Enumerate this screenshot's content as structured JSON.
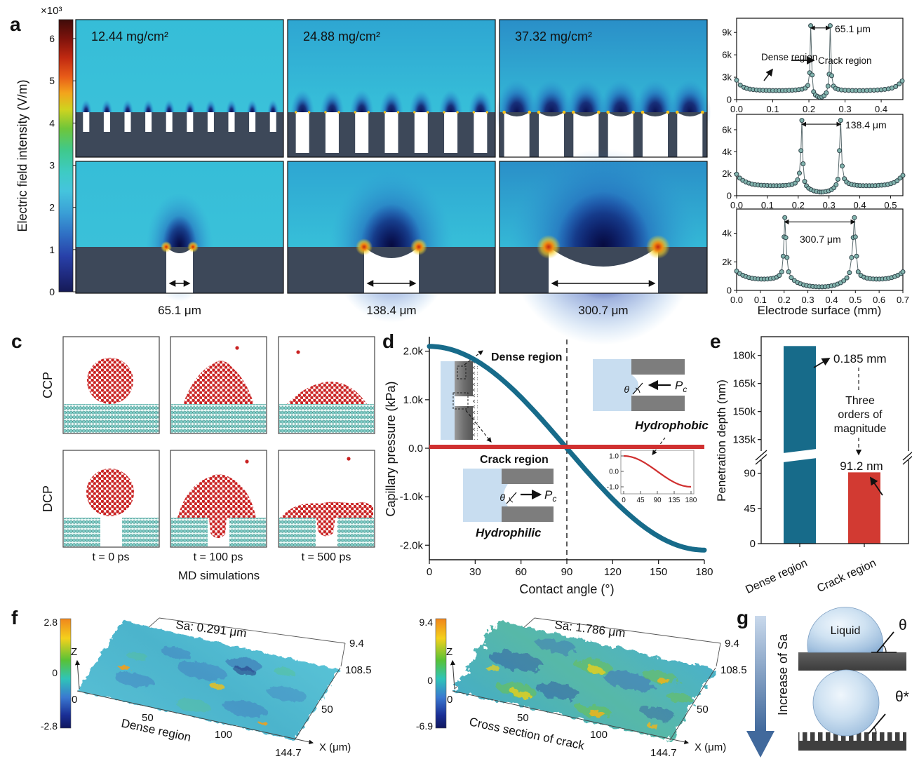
{
  "panel_a": {
    "label": "a",
    "scale_multiplier": "×10³",
    "colorbar_ticks": [
      "6",
      "5",
      "4",
      "3",
      "2",
      "1",
      "0"
    ],
    "ylabel": "Electric field intensity (V/m)",
    "columns": [
      {
        "loading": "12.44 mg/cm²",
        "crack_width": "65.1 μm"
      },
      {
        "loading": "24.88 mg/cm²",
        "crack_width": "138.4 μm"
      },
      {
        "loading": "37.32 mg/cm²",
        "crack_width": "300.7 μm"
      }
    ]
  },
  "panel_b": {
    "label": "b",
    "xlabel": "Electrode surface (mm)",
    "annotations": {
      "dense": "Dense region",
      "crack": "Crack region"
    }
  },
  "panel_c": {
    "label": "c",
    "rows": [
      "CCP",
      "DCP"
    ],
    "times": [
      "t = 0 ps",
      "t = 100 ps",
      "t = 500 ps"
    ],
    "caption": "MD simulations"
  },
  "panel_d": {
    "label": "d",
    "ylabel": "Capillary pressure (kPa)",
    "xlabel": "Contact angle (°)",
    "dense_label": "Dense region",
    "crack_label": "Crack region",
    "hydrophobic": "Hydrophobic",
    "hydrophilic": "Hydrophilic",
    "theta": "θ",
    "pressure_symbol": {
      "base": "P",
      "sub": "c"
    }
  },
  "panel_e": {
    "label": "e",
    "ylabel": "Penetration depth (nm)",
    "magnitude_lines": [
      "Three",
      "orders of",
      "magnitude"
    ]
  },
  "panel_f": {
    "label": "f",
    "z_axis": "Z"
  },
  "panel_g": {
    "label": "g",
    "arrow_label": "Increase of Sa",
    "droplet_label": "Liquid",
    "theta": "θ",
    "theta_star": "θ*"
  },
  "chart_data": [
    {
      "type": "scatter-line",
      "panel": "b-top",
      "title_annotation": "65.1 μm",
      "xlim": [
        0,
        0.46
      ],
      "ylim": [
        0,
        10900
      ],
      "xtick_labels": [
        "0.0",
        "0.1",
        "0.2",
        "0.3",
        "0.4"
      ],
      "xtick_values": [
        0,
        0.1,
        0.2,
        0.3,
        0.4
      ],
      "yticks": [
        {
          "v": 0,
          "label": "0"
        },
        {
          "v": 3000,
          "label": "3k"
        },
        {
          "v": 6000,
          "label": "6k"
        },
        {
          "v": 9000,
          "label": "9k"
        }
      ],
      "crack_span_mm": [
        0.205,
        0.258
      ],
      "arrow_y": 9600,
      "points": [
        [
          0,
          2600
        ],
        [
          0.01,
          1950
        ],
        [
          0.02,
          1650
        ],
        [
          0.028,
          1500
        ],
        [
          0.037,
          1400
        ],
        [
          0.046,
          1340
        ],
        [
          0.055,
          1300
        ],
        [
          0.064,
          1270
        ],
        [
          0.073,
          1250
        ],
        [
          0.082,
          1235
        ],
        [
          0.091,
          1225
        ],
        [
          0.1,
          1215
        ],
        [
          0.109,
          1210
        ],
        [
          0.118,
          1210
        ],
        [
          0.127,
          1215
        ],
        [
          0.136,
          1225
        ],
        [
          0.145,
          1240
        ],
        [
          0.154,
          1260
        ],
        [
          0.163,
          1290
        ],
        [
          0.172,
          1330
        ],
        [
          0.181,
          1400
        ],
        [
          0.19,
          1550
        ],
        [
          0.197,
          1900
        ],
        [
          0.202,
          3600
        ],
        [
          0.205,
          9900
        ],
        [
          0.209,
          3300
        ],
        [
          0.213,
          1050
        ],
        [
          0.218,
          620
        ],
        [
          0.224,
          420
        ],
        [
          0.23,
          310
        ],
        [
          0.236,
          360
        ],
        [
          0.242,
          520
        ],
        [
          0.248,
          900
        ],
        [
          0.253,
          1800
        ],
        [
          0.256,
          3400
        ],
        [
          0.259,
          9900
        ],
        [
          0.263,
          3200
        ],
        [
          0.268,
          1800
        ],
        [
          0.274,
          1500
        ],
        [
          0.281,
          1380
        ],
        [
          0.29,
          1300
        ],
        [
          0.3,
          1260
        ],
        [
          0.31,
          1235
        ],
        [
          0.32,
          1220
        ],
        [
          0.33,
          1210
        ],
        [
          0.34,
          1210
        ],
        [
          0.35,
          1215
        ],
        [
          0.36,
          1225
        ],
        [
          0.37,
          1240
        ],
        [
          0.38,
          1260
        ],
        [
          0.39,
          1285
        ],
        [
          0.4,
          1320
        ],
        [
          0.41,
          1370
        ],
        [
          0.42,
          1440
        ],
        [
          0.43,
          1550
        ],
        [
          0.44,
          1750
        ],
        [
          0.45,
          2100
        ],
        [
          0.458,
          2500
        ]
      ]
    },
    {
      "type": "scatter-line",
      "panel": "b-mid",
      "title_annotation": "138.4 μm",
      "xlim": [
        0,
        0.54
      ],
      "ylim": [
        0,
        7400
      ],
      "xtick_labels": [
        "0.0",
        "0.1",
        "0.2",
        "0.3",
        "0.4",
        "0.5"
      ],
      "xtick_values": [
        0,
        0.1,
        0.2,
        0.3,
        0.4,
        0.5
      ],
      "yticks": [
        {
          "v": 0,
          "label": "0"
        },
        {
          "v": 2000,
          "label": "2k"
        },
        {
          "v": 4000,
          "label": "4k"
        },
        {
          "v": 6000,
          "label": "6k"
        }
      ],
      "crack_span_mm": [
        0.212,
        0.338
      ],
      "arrow_y": 6500,
      "points": [
        [
          0,
          1950
        ],
        [
          0.01,
          1600
        ],
        [
          0.02,
          1400
        ],
        [
          0.03,
          1250
        ],
        [
          0.04,
          1140
        ],
        [
          0.05,
          1060
        ],
        [
          0.06,
          1010
        ],
        [
          0.07,
          975
        ],
        [
          0.08,
          950
        ],
        [
          0.09,
          935
        ],
        [
          0.1,
          925
        ],
        [
          0.11,
          915
        ],
        [
          0.12,
          910
        ],
        [
          0.13,
          910
        ],
        [
          0.14,
          915
        ],
        [
          0.15,
          925
        ],
        [
          0.16,
          945
        ],
        [
          0.17,
          975
        ],
        [
          0.18,
          1030
        ],
        [
          0.19,
          1140
        ],
        [
          0.198,
          1450
        ],
        [
          0.204,
          2050
        ],
        [
          0.209,
          4100
        ],
        [
          0.212,
          6850
        ],
        [
          0.216,
          2900
        ],
        [
          0.221,
          1300
        ],
        [
          0.227,
          900
        ],
        [
          0.234,
          680
        ],
        [
          0.242,
          540
        ],
        [
          0.251,
          440
        ],
        [
          0.26,
          380
        ],
        [
          0.269,
          340
        ],
        [
          0.275,
          325
        ],
        [
          0.281,
          340
        ],
        [
          0.29,
          380
        ],
        [
          0.299,
          440
        ],
        [
          0.308,
          550
        ],
        [
          0.316,
          720
        ],
        [
          0.323,
          1000
        ],
        [
          0.329,
          1500
        ],
        [
          0.334,
          4100
        ],
        [
          0.338,
          6850
        ],
        [
          0.343,
          2700
        ],
        [
          0.35,
          1550
        ],
        [
          0.357,
          1250
        ],
        [
          0.365,
          1100
        ],
        [
          0.374,
          1020
        ],
        [
          0.383,
          970
        ],
        [
          0.392,
          940
        ],
        [
          0.401,
          920
        ],
        [
          0.411,
          910
        ],
        [
          0.421,
          905
        ],
        [
          0.431,
          905
        ],
        [
          0.441,
          910
        ],
        [
          0.451,
          920
        ],
        [
          0.461,
          935
        ],
        [
          0.471,
          955
        ],
        [
          0.481,
          985
        ],
        [
          0.491,
          1030
        ],
        [
          0.501,
          1100
        ],
        [
          0.511,
          1200
        ],
        [
          0.521,
          1350
        ],
        [
          0.531,
          1600
        ],
        [
          0.54,
          1850
        ]
      ]
    },
    {
      "type": "scatter-line",
      "panel": "b-bottom",
      "title_annotation": "300.7 μm",
      "xlim": [
        0,
        0.7
      ],
      "ylim": [
        0,
        5700
      ],
      "xtick_labels": [
        "0.0",
        "0.1",
        "0.2",
        "0.3",
        "0.4",
        "0.5",
        "0.6",
        "0.7"
      ],
      "xtick_values": [
        0,
        0.1,
        0.2,
        0.3,
        0.4,
        0.5,
        0.6,
        0.7
      ],
      "yticks": [
        {
          "v": 0,
          "label": "0"
        },
        {
          "v": 2000,
          "label": "2k"
        },
        {
          "v": 4000,
          "label": "4k"
        }
      ],
      "crack_span_mm": [
        0.202,
        0.498
      ],
      "arrow_y": 4800,
      "points": [
        [
          0,
          1350
        ],
        [
          0.013,
          1180
        ],
        [
          0.026,
          1060
        ],
        [
          0.039,
          970
        ],
        [
          0.052,
          900
        ],
        [
          0.065,
          855
        ],
        [
          0.078,
          820
        ],
        [
          0.091,
          800
        ],
        [
          0.104,
          790
        ],
        [
          0.117,
          790
        ],
        [
          0.13,
          800
        ],
        [
          0.143,
          820
        ],
        [
          0.156,
          860
        ],
        [
          0.169,
          930
        ],
        [
          0.18,
          1050
        ],
        [
          0.19,
          1300
        ],
        [
          0.196,
          2400
        ],
        [
          0.2,
          3750
        ],
        [
          0.203,
          5100
        ],
        [
          0.207,
          3700
        ],
        [
          0.212,
          2300
        ],
        [
          0.219,
          1300
        ],
        [
          0.23,
          900
        ],
        [
          0.243,
          700
        ],
        [
          0.256,
          560
        ],
        [
          0.269,
          460
        ],
        [
          0.282,
          390
        ],
        [
          0.295,
          340
        ],
        [
          0.308,
          300
        ],
        [
          0.321,
          275
        ],
        [
          0.334,
          258
        ],
        [
          0.347,
          250
        ],
        [
          0.36,
          252
        ],
        [
          0.373,
          262
        ],
        [
          0.386,
          285
        ],
        [
          0.399,
          320
        ],
        [
          0.412,
          370
        ],
        [
          0.425,
          440
        ],
        [
          0.438,
          540
        ],
        [
          0.451,
          680
        ],
        [
          0.464,
          880
        ],
        [
          0.475,
          1250
        ],
        [
          0.484,
          2300
        ],
        [
          0.491,
          3700
        ],
        [
          0.496,
          5100
        ],
        [
          0.5,
          3750
        ],
        [
          0.505,
          2400
        ],
        [
          0.512,
          1300
        ],
        [
          0.523,
          1050
        ],
        [
          0.536,
          930
        ],
        [
          0.549,
          860
        ],
        [
          0.562,
          820
        ],
        [
          0.575,
          800
        ],
        [
          0.588,
          790
        ],
        [
          0.601,
          790
        ],
        [
          0.614,
          800
        ],
        [
          0.627,
          820
        ],
        [
          0.64,
          855
        ],
        [
          0.653,
          900
        ],
        [
          0.666,
          970
        ],
        [
          0.679,
          1060
        ],
        [
          0.692,
          1180
        ],
        [
          0.7,
          1300
        ]
      ]
    },
    {
      "type": "line",
      "panel": "d",
      "xlabel": "Contact angle (°)",
      "ylabel": "Capillary pressure (kPa)",
      "xlim": [
        0,
        180
      ],
      "xticks": [
        0,
        30,
        60,
        90,
        120,
        150,
        180
      ],
      "yticks": [
        {
          "v": 2000,
          "label": "2.0k"
        },
        {
          "v": 1000,
          "label": "1.0k"
        },
        {
          "v": 0,
          "label": "0.0"
        },
        {
          "v": -1000,
          "label": "-1.0k"
        },
        {
          "v": -2000,
          "label": "-2.0k"
        }
      ],
      "dashed_vline_x": 90,
      "series": [
        {
          "name": "Dense region",
          "model": "Pc = A·cos(θ)",
          "amplitude_kPa": 2100,
          "color": "#176b8a"
        },
        {
          "name": "Crack region",
          "model": "Pc ≈ 0 (flat)",
          "amplitude_kPa": 0,
          "color": "#d03030"
        }
      ],
      "inset": {
        "curve": "cos(θ)",
        "xticks": [
          "0",
          "45",
          "90",
          "135",
          "180"
        ],
        "yticks": [
          "1.0",
          "0.0",
          "-1.0"
        ]
      }
    },
    {
      "type": "bar",
      "panel": "e",
      "categories": [
        "Dense region",
        "Crack region"
      ],
      "values_nm": [
        185000,
        91.2
      ],
      "value_labels": [
        "0.185 mm",
        "91.2 nm"
      ],
      "colors": [
        "#176b8a",
        "#d23a32"
      ],
      "broken_axis": true,
      "yticks_lower": [
        {
          "v": 0,
          "label": "0"
        },
        {
          "v": 45,
          "label": "45"
        },
        {
          "v": 90,
          "label": "90"
        }
      ],
      "yticks_upper": [
        {
          "v": 135000,
          "label": "135k"
        },
        {
          "v": 150000,
          "label": "150k"
        },
        {
          "v": 165000,
          "label": "165k"
        },
        {
          "v": 180000,
          "label": "180k"
        }
      ]
    },
    {
      "type": "surface",
      "panel": "f-left",
      "title": "Sa: 0.291 μm",
      "region": "Dense region",
      "xlabel": "X (μm)",
      "zlabel": "Z",
      "xticks": [
        "0",
        "50",
        "100",
        "144.7"
      ],
      "yticks": [
        "50",
        "108.5"
      ],
      "ztop": "9.4",
      "colorbar_ticks": [
        "2.8",
        "0",
        "-2.8"
      ],
      "x_range_um": [
        0,
        144.7
      ],
      "y_range_um": [
        0,
        108.5
      ],
      "z_range_um": [
        -2.8,
        2.8
      ]
    },
    {
      "type": "surface",
      "panel": "f-right",
      "title": "Sa: 1.786 μm",
      "region": "Cross section of crack",
      "xlabel": "X (μm)",
      "zlabel": "Z",
      "xticks": [
        "0",
        "50",
        "100",
        "144.7"
      ],
      "yticks": [
        "50",
        "108.5"
      ],
      "ztop": "9.4",
      "colorbar_ticks": [
        "9.4",
        "0",
        "-6.9"
      ],
      "x_range_um": [
        0,
        144.7
      ],
      "y_range_um": [
        0,
        108.5
      ],
      "z_range_um": [
        -6.9,
        9.4
      ]
    }
  ]
}
